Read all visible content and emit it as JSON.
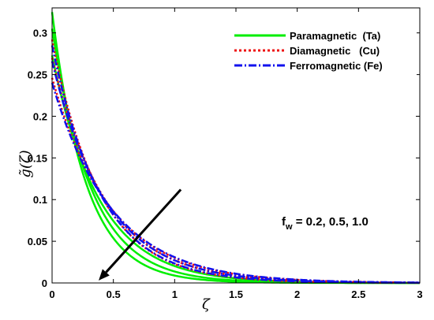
{
  "chart_data": {
    "type": "line",
    "title": "",
    "xlabel": "ζ",
    "ylabel": "g̃(ζ)",
    "xlim": [
      0,
      3
    ],
    "ylim": [
      0,
      0.33
    ],
    "xticks": [
      "0",
      "0.5",
      "1",
      "1.5",
      "2",
      "2.5",
      "3"
    ],
    "yticks": [
      "0",
      "0.05",
      "0.1",
      "0.15",
      "0.2",
      "0.25",
      "0.3"
    ],
    "legend_position": "top-right",
    "annotation": {
      "base": "f",
      "sub": "w",
      "text": " = 0.2, 0.5, 1.0"
    },
    "arrow": {
      "from": [
        1.05,
        0.112
      ],
      "to": [
        0.38,
        0.003
      ]
    },
    "series": [
      {
        "name": "Paramagnetic  (Ta)",
        "color": "#00ee00",
        "style": "solid",
        "curves": [
          {
            "f_w": 0.2,
            "g0": 0.325,
            "k": 3.6
          },
          {
            "f_w": 0.5,
            "g0": 0.305,
            "k": 3.1
          },
          {
            "f_w": 1.0,
            "g0": 0.273,
            "k": 2.6
          }
        ]
      },
      {
        "name": "Diamagnetic   (Cu)",
        "color": "#ee1111",
        "style": "dotted",
        "curves": [
          {
            "f_w": 0.2,
            "g0": 0.292,
            "k": 2.55
          },
          {
            "f_w": 0.5,
            "g0": 0.27,
            "k": 2.3
          },
          {
            "f_w": 1.0,
            "g0": 0.246,
            "k": 2.1
          }
        ]
      },
      {
        "name": "Ferromagnetic (Fe)",
        "color": "#1111ee",
        "style": "dashdot",
        "curves": [
          {
            "f_w": 0.2,
            "g0": 0.285,
            "k": 2.5
          },
          {
            "f_w": 0.5,
            "g0": 0.266,
            "k": 2.28
          },
          {
            "f_w": 1.0,
            "g0": 0.24,
            "k": 2.05
          }
        ]
      }
    ]
  }
}
